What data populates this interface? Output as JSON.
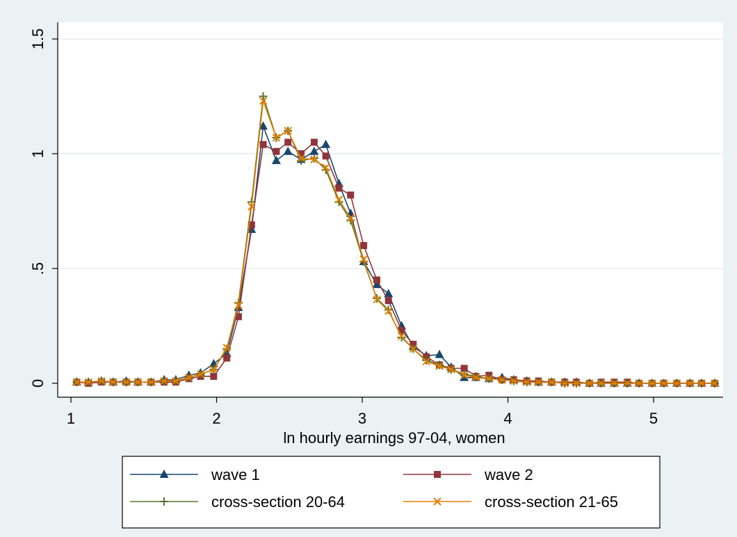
{
  "chart_data": {
    "type": "line",
    "title": "",
    "xlabel": "ln hourly earnings 97-04, women",
    "ylabel": "",
    "xlim": [
      1.05,
      5.4
    ],
    "ylim": [
      -0.05,
      1.55
    ],
    "xticks": [
      1,
      2,
      3,
      4,
      5
    ],
    "xtick_labels": [
      "1",
      "2",
      "3",
      "4",
      "5"
    ],
    "yticks": [
      0,
      0.5,
      1,
      1.5
    ],
    "ytick_labels": [
      "0",
      ".5",
      "1",
      "1.5"
    ],
    "grid": "horizontal",
    "legend_position": "bottom",
    "x": [
      1.04,
      1.12,
      1.21,
      1.29,
      1.38,
      1.46,
      1.55,
      1.64,
      1.72,
      1.81,
      1.89,
      1.98,
      2.07,
      2.15,
      2.24,
      2.32,
      2.41,
      2.49,
      2.58,
      2.67,
      2.75,
      2.84,
      2.92,
      3.01,
      3.1,
      3.18,
      3.27,
      3.35,
      3.44,
      3.53,
      3.61,
      3.7,
      3.78,
      3.87,
      3.96,
      4.04,
      4.13,
      4.21,
      4.3,
      4.39,
      4.47,
      4.56,
      4.64,
      4.73,
      4.82,
      4.9,
      4.99,
      5.07,
      5.16,
      5.25,
      5.33,
      5.42
    ],
    "series": [
      {
        "name": "wave 1",
        "color": "#1a476f",
        "marker": "triangle",
        "values": [
          0.005,
          0.005,
          0.01,
          0.005,
          0.01,
          0.005,
          0.005,
          0.015,
          0.015,
          0.035,
          0.045,
          0.085,
          0.13,
          0.33,
          0.67,
          1.12,
          0.97,
          1.01,
          0.975,
          1.01,
          1.04,
          0.87,
          0.74,
          0.53,
          0.43,
          0.39,
          0.25,
          0.16,
          0.12,
          0.125,
          0.07,
          0.025,
          0.025,
          0.02,
          0.025,
          0.015,
          0.01,
          0.005,
          0.005,
          0.005,
          0.005,
          0,
          0,
          0,
          0,
          0,
          0,
          0,
          0,
          0,
          0,
          0
        ]
      },
      {
        "name": "wave 2",
        "color": "#90353b",
        "marker": "square",
        "values": [
          0.005,
          0,
          0.005,
          0.005,
          0.005,
          0.005,
          0.005,
          0.005,
          0.005,
          0.02,
          0.03,
          0.03,
          0.11,
          0.29,
          0.69,
          1.04,
          1.01,
          1.05,
          1.0,
          1.05,
          0.99,
          0.85,
          0.82,
          0.6,
          0.45,
          0.36,
          0.23,
          0.17,
          0.115,
          0.08,
          0.065,
          0.065,
          0.03,
          0.035,
          0.015,
          0.015,
          0.01,
          0.01,
          0.005,
          0.005,
          0.005,
          0,
          0.005,
          0.005,
          0.005,
          0,
          0,
          0,
          0,
          0,
          0,
          0
        ]
      },
      {
        "name": "cross-section 20-64",
        "color": "#55752f",
        "marker": "plus",
        "values": [
          0.005,
          0.005,
          0.01,
          0.005,
          0.005,
          0.005,
          0.005,
          0.01,
          0.01,
          0.025,
          0.04,
          0.06,
          0.15,
          0.35,
          0.79,
          1.25,
          1.07,
          1.1,
          0.97,
          0.98,
          0.93,
          0.79,
          0.71,
          0.53,
          0.37,
          0.32,
          0.2,
          0.15,
          0.1,
          0.08,
          0.06,
          0.04,
          0.03,
          0.02,
          0.015,
          0.01,
          0.005,
          0.005,
          0.005,
          0,
          0,
          0,
          0,
          0,
          0,
          0,
          0,
          0,
          0,
          0,
          0,
          0
        ]
      },
      {
        "name": "cross-section 21-65",
        "color": "#e37e00",
        "marker": "x",
        "values": [
          0.005,
          0.005,
          0.01,
          0.005,
          0.005,
          0.005,
          0.005,
          0.01,
          0.01,
          0.025,
          0.04,
          0.06,
          0.155,
          0.34,
          0.77,
          1.23,
          1.07,
          1.1,
          0.98,
          0.975,
          0.94,
          0.8,
          0.72,
          0.54,
          0.365,
          0.315,
          0.205,
          0.15,
          0.095,
          0.075,
          0.06,
          0.035,
          0.025,
          0.02,
          0.015,
          0.01,
          0.005,
          0.005,
          0.005,
          0,
          0,
          0,
          0,
          0,
          0,
          0,
          0,
          0,
          0,
          0,
          0,
          0
        ]
      }
    ]
  }
}
